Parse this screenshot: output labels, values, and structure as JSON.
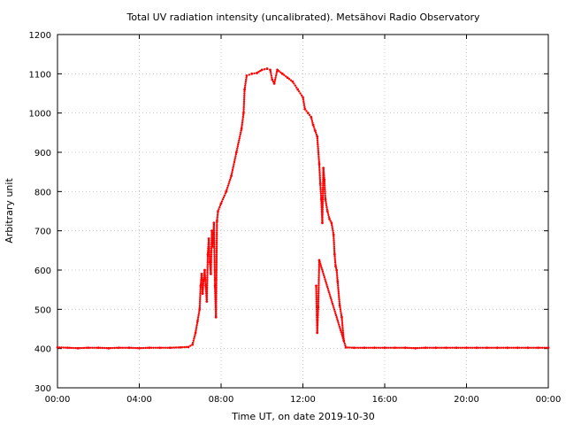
{
  "chart_data": {
    "type": "scatter",
    "title": "Total UV radiation intensity (uncalibrated). Metsähovi Radio Observatory",
    "xlabel": "Time UT, on date 2019-10-30",
    "ylabel": "Arbitrary unit",
    "xlim": [
      0,
      24
    ],
    "ylim": [
      300,
      1200
    ],
    "x_tick_labels": [
      "00:00",
      "04:00",
      "08:00",
      "12:00",
      "16:00",
      "20:00",
      "00:00"
    ],
    "y_tick_labels": [
      "300",
      "400",
      "500",
      "600",
      "700",
      "800",
      "900",
      "1000",
      "1100",
      "1200"
    ],
    "grid": true,
    "marker_color": "#ff0000",
    "x_unit": "hours UT",
    "series": [
      {
        "points": [
          [
            0.0,
            403
          ],
          [
            0.5,
            402
          ],
          [
            1.0,
            401
          ],
          [
            1.5,
            402
          ],
          [
            2.0,
            402
          ],
          [
            2.5,
            401
          ],
          [
            3.0,
            402
          ],
          [
            3.5,
            402
          ],
          [
            4.0,
            401
          ],
          [
            4.5,
            402
          ],
          [
            5.0,
            402
          ],
          [
            5.5,
            402
          ],
          [
            6.0,
            403
          ],
          [
            6.4,
            404
          ],
          [
            6.6,
            410
          ],
          [
            6.75,
            440
          ],
          [
            6.85,
            470
          ],
          [
            6.95,
            500
          ],
          [
            7.0,
            560
          ],
          [
            7.05,
            590
          ],
          [
            7.1,
            540
          ],
          [
            7.15,
            575
          ],
          [
            7.2,
            600
          ],
          [
            7.25,
            560
          ],
          [
            7.3,
            520
          ],
          [
            7.35,
            640
          ],
          [
            7.4,
            680
          ],
          [
            7.45,
            620
          ],
          [
            7.5,
            590
          ],
          [
            7.55,
            700
          ],
          [
            7.6,
            660
          ],
          [
            7.65,
            720
          ],
          [
            7.7,
            560
          ],
          [
            7.75,
            480
          ],
          [
            7.8,
            725
          ],
          [
            7.85,
            750
          ],
          [
            8.0,
            770
          ],
          [
            8.25,
            800
          ],
          [
            8.5,
            840
          ],
          [
            8.75,
            900
          ],
          [
            9.0,
            960
          ],
          [
            9.1,
            1000
          ],
          [
            9.15,
            1060
          ],
          [
            9.25,
            1095
          ],
          [
            9.5,
            1100
          ],
          [
            9.75,
            1102
          ],
          [
            10.0,
            1110
          ],
          [
            10.25,
            1113
          ],
          [
            10.4,
            1110
          ],
          [
            10.5,
            1085
          ],
          [
            10.6,
            1075
          ],
          [
            10.75,
            1110
          ],
          [
            11.0,
            1100
          ],
          [
            11.25,
            1090
          ],
          [
            11.5,
            1080
          ],
          [
            11.75,
            1060
          ],
          [
            12.0,
            1040
          ],
          [
            12.1,
            1010
          ],
          [
            12.25,
            1000
          ],
          [
            12.4,
            990
          ],
          [
            12.5,
            970
          ],
          [
            12.6,
            955
          ],
          [
            12.7,
            940
          ],
          [
            12.8,
            870
          ],
          [
            12.85,
            820
          ],
          [
            12.9,
            780
          ],
          [
            12.95,
            720
          ],
          [
            13.0,
            860
          ],
          [
            13.05,
            830
          ],
          [
            13.1,
            780
          ],
          [
            13.2,
            750
          ],
          [
            13.3,
            730
          ],
          [
            13.4,
            720
          ],
          [
            13.5,
            690
          ],
          [
            13.55,
            640
          ],
          [
            13.6,
            610
          ],
          [
            13.65,
            600
          ],
          [
            13.7,
            570
          ],
          [
            13.8,
            510
          ],
          [
            13.9,
            480
          ],
          [
            14.0,
            420
          ],
          [
            12.65,
            560
          ],
          [
            12.7,
            440
          ],
          [
            12.75,
            505
          ],
          [
            12.8,
            625
          ],
          [
            14.1,
            403
          ],
          [
            14.5,
            402
          ],
          [
            15.0,
            402
          ],
          [
            15.5,
            402
          ],
          [
            16.0,
            402
          ],
          [
            16.5,
            402
          ],
          [
            17.0,
            402
          ],
          [
            17.5,
            401
          ],
          [
            18.0,
            402
          ],
          [
            18.5,
            402
          ],
          [
            19.0,
            402
          ],
          [
            19.5,
            402
          ],
          [
            20.0,
            402
          ],
          [
            20.5,
            402
          ],
          [
            21.0,
            402
          ],
          [
            21.5,
            402
          ],
          [
            22.0,
            402
          ],
          [
            22.5,
            402
          ],
          [
            23.0,
            402
          ],
          [
            23.5,
            402
          ],
          [
            24.0,
            402
          ]
        ]
      }
    ]
  }
}
